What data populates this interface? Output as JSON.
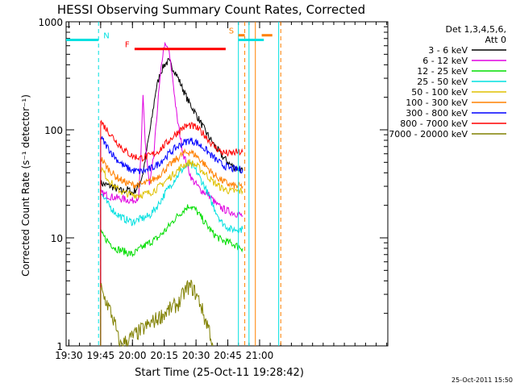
{
  "chart_data": {
    "type": "line",
    "title": "HESSI Observing Summary Count Rates, Corrected",
    "xlabel": "Start Time (25-Oct-11 19:28:42)",
    "ylabel": "Corrected Count Rate (s⁻¹ detector⁻¹)",
    "y_scale": "log",
    "xlim_minutes_of_day": [
      1168.7,
      1320.5
    ],
    "ylim": [
      1,
      1000
    ],
    "x_ticks": [
      {
        "label": "19:30",
        "value": 1170
      },
      {
        "label": "19:45",
        "value": 1185
      },
      {
        "label": "20:00",
        "value": 1200
      },
      {
        "label": "20:15",
        "value": 1215
      },
      {
        "label": "20:30",
        "value": 1230
      },
      {
        "label": "20:45",
        "value": 1245
      },
      {
        "label": "21:00",
        "value": 1260
      }
    ],
    "y_ticks": [
      {
        "label": "1",
        "value": 1
      },
      {
        "label": "10",
        "value": 10
      },
      {
        "label": "100",
        "value": 100
      },
      {
        "label": "1000",
        "value": 1000
      }
    ],
    "legend_title": "Det 1,3,4,5,6,",
    "legend_subtitle": "Att 0",
    "legend_position": "right",
    "series": [
      {
        "name": "3 - 6 keV",
        "color": "#000000",
        "points": [
          [
            1185,
            32
          ],
          [
            1190,
            30
          ],
          [
            1195,
            27
          ],
          [
            1198,
            28
          ],
          [
            1200,
            26
          ],
          [
            1203,
            30
          ],
          [
            1205,
            40
          ],
          [
            1207,
            70
          ],
          [
            1209,
            120
          ],
          [
            1211,
            230
          ],
          [
            1213,
            330
          ],
          [
            1215,
            400
          ],
          [
            1217,
            430
          ],
          [
            1220,
            350
          ],
          [
            1223,
            260
          ],
          [
            1226,
            190
          ],
          [
            1230,
            140
          ],
          [
            1234,
            100
          ],
          [
            1238,
            75
          ],
          [
            1242,
            58
          ],
          [
            1246,
            48
          ],
          [
            1249,
            44
          ],
          [
            1252,
            42
          ]
        ]
      },
      {
        "name": "6 - 12 keV",
        "color": "#e000e0",
        "points": [
          [
            1185,
            26
          ],
          [
            1190,
            24
          ],
          [
            1195,
            23
          ],
          [
            1200,
            22
          ],
          [
            1203,
            24
          ],
          [
            1204,
            60
          ],
          [
            1205,
            200
          ],
          [
            1206,
            80
          ],
          [
            1208,
            30
          ],
          [
            1210,
            55
          ],
          [
            1212,
            180
          ],
          [
            1214,
            450
          ],
          [
            1215,
            600
          ],
          [
            1217,
            560
          ],
          [
            1219,
            300
          ],
          [
            1221,
            130
          ],
          [
            1224,
            60
          ],
          [
            1228,
            35
          ],
          [
            1232,
            28
          ],
          [
            1236,
            25
          ],
          [
            1240,
            20
          ],
          [
            1244,
            18
          ],
          [
            1248,
            17
          ],
          [
            1252,
            16
          ]
        ]
      },
      {
        "name": "12 - 25 keV",
        "color": "#00dd00",
        "points": [
          [
            1185,
            11
          ],
          [
            1188,
            9.5
          ],
          [
            1192,
            8
          ],
          [
            1196,
            7.5
          ],
          [
            1200,
            7
          ],
          [
            1204,
            8
          ],
          [
            1208,
            9
          ],
          [
            1212,
            10
          ],
          [
            1216,
            12
          ],
          [
            1220,
            15
          ],
          [
            1224,
            18
          ],
          [
            1227,
            20
          ],
          [
            1230,
            18
          ],
          [
            1234,
            14
          ],
          [
            1238,
            11
          ],
          [
            1242,
            9.5
          ],
          [
            1246,
            9
          ],
          [
            1249,
            8.5
          ],
          [
            1252,
            8
          ]
        ]
      },
      {
        "name": "25 - 50 keV",
        "color": "#00e0e0",
        "points": [
          [
            1185,
            26
          ],
          [
            1188,
            21
          ],
          [
            1192,
            17
          ],
          [
            1196,
            15
          ],
          [
            1200,
            14
          ],
          [
            1204,
            15
          ],
          [
            1208,
            16
          ],
          [
            1212,
            20
          ],
          [
            1216,
            27
          ],
          [
            1220,
            35
          ],
          [
            1224,
            44
          ],
          [
            1227,
            48
          ],
          [
            1230,
            42
          ],
          [
            1234,
            30
          ],
          [
            1238,
            20
          ],
          [
            1242,
            14
          ],
          [
            1246,
            12
          ],
          [
            1249,
            12
          ],
          [
            1252,
            12
          ]
        ]
      },
      {
        "name": "50 - 100 keV",
        "color": "#e0c000",
        "points": [
          [
            1185,
            45
          ],
          [
            1188,
            36
          ],
          [
            1192,
            29
          ],
          [
            1196,
            26
          ],
          [
            1200,
            25
          ],
          [
            1204,
            25
          ],
          [
            1208,
            26
          ],
          [
            1212,
            29
          ],
          [
            1216,
            34
          ],
          [
            1220,
            40
          ],
          [
            1224,
            47
          ],
          [
            1227,
            50
          ],
          [
            1230,
            47
          ],
          [
            1234,
            40
          ],
          [
            1238,
            33
          ],
          [
            1242,
            29
          ],
          [
            1246,
            27
          ],
          [
            1249,
            27
          ],
          [
            1252,
            27
          ]
        ]
      },
      {
        "name": "100 - 300 keV",
        "color": "#ff8000",
        "points": [
          [
            1185,
            55
          ],
          [
            1188,
            45
          ],
          [
            1192,
            37
          ],
          [
            1196,
            33
          ],
          [
            1200,
            31
          ],
          [
            1204,
            31
          ],
          [
            1208,
            33
          ],
          [
            1212,
            37
          ],
          [
            1216,
            44
          ],
          [
            1220,
            52
          ],
          [
            1224,
            60
          ],
          [
            1227,
            63
          ],
          [
            1230,
            58
          ],
          [
            1234,
            48
          ],
          [
            1238,
            39
          ],
          [
            1242,
            34
          ],
          [
            1246,
            31
          ],
          [
            1249,
            30
          ],
          [
            1252,
            30
          ]
        ]
      },
      {
        "name": "300 - 800 keV",
        "color": "#0000ff",
        "points": [
          [
            1185,
            85
          ],
          [
            1188,
            70
          ],
          [
            1192,
            55
          ],
          [
            1196,
            46
          ],
          [
            1200,
            42
          ],
          [
            1204,
            41
          ],
          [
            1208,
            43
          ],
          [
            1212,
            48
          ],
          [
            1216,
            57
          ],
          [
            1220,
            67
          ],
          [
            1224,
            76
          ],
          [
            1227,
            80
          ],
          [
            1230,
            77
          ],
          [
            1234,
            67
          ],
          [
            1238,
            56
          ],
          [
            1242,
            48
          ],
          [
            1246,
            44
          ],
          [
            1249,
            43
          ],
          [
            1252,
            43
          ]
        ]
      },
      {
        "name": "800 - 7000 keV",
        "color": "#ff0000",
        "points": [
          [
            1185,
            120
          ],
          [
            1188,
            100
          ],
          [
            1192,
            80
          ],
          [
            1196,
            65
          ],
          [
            1200,
            57
          ],
          [
            1204,
            55
          ],
          [
            1208,
            57
          ],
          [
            1212,
            63
          ],
          [
            1216,
            75
          ],
          [
            1220,
            90
          ],
          [
            1224,
            105
          ],
          [
            1227,
            110
          ],
          [
            1230,
            105
          ],
          [
            1234,
            90
          ],
          [
            1238,
            72
          ],
          [
            1242,
            62
          ],
          [
            1246,
            60
          ],
          [
            1249,
            62
          ],
          [
            1252,
            62
          ]
        ]
      },
      {
        "name": "7000 - 20000 keV",
        "color": "#808000",
        "points": [
          [
            1185,
            3.5
          ],
          [
            1186,
            3
          ],
          [
            1188,
            2.5
          ],
          [
            1190,
            2
          ],
          [
            1192,
            1.5
          ],
          [
            1194,
            1
          ],
          [
            1222,
            2.5
          ],
          [
            1224,
            3
          ],
          [
            1226,
            3.5
          ],
          [
            1228,
            3.5
          ],
          [
            1230,
            3
          ],
          [
            1232,
            2.5
          ],
          [
            1234,
            1.8
          ],
          [
            1236,
            1.5
          ],
          [
            1238,
            1
          ]
        ]
      }
    ],
    "annotations": [
      {
        "label": "N",
        "color": "#00e0e0",
        "y": 680,
        "segments": [
          [
            1168.7,
            1184
          ]
        ]
      },
      {
        "label": "F",
        "color": "#ff0000",
        "y": 560,
        "segments": [
          [
            1201,
            1244
          ]
        ]
      },
      {
        "label": "S",
        "color": "#ff8000",
        "y": 750,
        "segments": [
          [
            1250,
            1253
          ],
          [
            1261,
            1266
          ]
        ]
      }
    ],
    "extra_segments": [
      {
        "color": "#00e0e0",
        "y": 680,
        "segments": [
          [
            1250,
            1262
          ]
        ]
      }
    ],
    "vertical_markers": [
      {
        "minute": 1184,
        "color": "#00e0e0",
        "style": "dashed"
      },
      {
        "minute": 1250,
        "color": "#00e0e0",
        "style": "solid"
      },
      {
        "minute": 1253,
        "color": "#ff8000",
        "style": "dashed"
      },
      {
        "minute": 1255,
        "color": "#00e0e0",
        "style": "solid"
      },
      {
        "minute": 1258,
        "color": "#ff8000",
        "style": "solid"
      },
      {
        "minute": 1269,
        "color": "#00e0e0",
        "style": "solid"
      },
      {
        "minute": 1270,
        "color": "#ff8000",
        "style": "dashed"
      }
    ]
  },
  "timestamp": "25-Oct-2011 15:50"
}
